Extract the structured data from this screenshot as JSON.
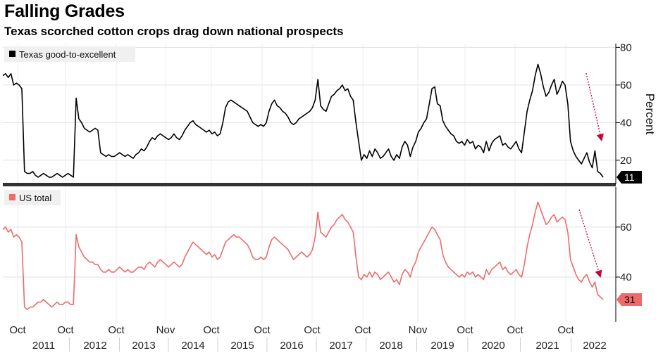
{
  "header": {
    "title": "Falling Grades",
    "subtitle": "Texas scorched cotton crops drag down national prospects"
  },
  "chart_data": [
    {
      "type": "line",
      "panel": "top",
      "series": [
        {
          "name": "Texas good-to-excellent",
          "color": "#000000",
          "values": [
            65,
            66,
            64,
            66,
            60,
            61,
            60,
            58,
            14,
            13,
            13,
            14,
            12,
            11,
            12,
            13,
            12,
            11,
            11,
            12,
            13,
            12,
            11,
            12,
            13,
            12,
            11,
            53,
            42,
            40,
            37,
            36,
            35,
            36,
            37,
            36,
            24,
            23,
            22,
            23,
            22,
            22,
            23,
            24,
            23,
            22,
            23,
            22,
            21,
            23,
            24,
            26,
            25,
            27,
            30,
            32,
            31,
            33,
            34,
            33,
            32,
            31,
            32,
            34,
            32,
            31,
            33,
            36,
            38,
            40,
            41,
            39,
            38,
            37,
            36,
            35,
            36,
            34,
            35,
            33,
            34,
            40,
            48,
            51,
            52,
            51,
            50,
            49,
            48,
            47,
            46,
            43,
            40,
            39,
            38,
            39,
            38,
            40,
            46,
            50,
            52,
            49,
            48,
            46,
            45,
            43,
            40,
            39,
            40,
            42,
            43,
            44,
            45,
            46,
            48,
            52,
            63,
            49,
            47,
            46,
            50,
            54,
            55,
            57,
            58,
            60,
            57,
            58,
            54,
            52,
            40,
            30,
            20,
            23,
            21,
            25,
            22,
            26,
            24,
            21,
            22,
            24,
            26,
            22,
            20,
            23,
            21,
            27,
            30,
            28,
            22,
            27,
            30,
            35,
            37,
            40,
            42,
            50,
            58,
            59,
            50,
            49,
            41,
            38,
            36,
            34,
            33,
            30,
            29,
            30,
            28,
            31,
            29,
            30,
            26,
            28,
            27,
            24,
            30,
            25,
            29,
            31,
            32,
            33,
            28,
            29,
            27,
            26,
            28,
            30,
            26,
            24,
            35,
            46,
            52,
            57,
            65,
            71,
            66,
            59,
            54,
            56,
            60,
            63,
            55,
            58,
            62,
            60,
            50,
            30,
            25,
            22,
            20,
            18,
            21,
            24,
            19,
            16,
            25,
            14,
            13,
            11
          ],
          "label_value": "11"
        }
      ],
      "ylim": [
        8,
        82
      ],
      "yticks": [
        20,
        40,
        60,
        80
      ],
      "ylabel": "Percent"
    },
    {
      "type": "line",
      "panel": "bottom",
      "series": [
        {
          "name": "US total",
          "color": "#ee6b6b",
          "values": [
            59,
            60,
            58,
            59,
            56,
            57,
            56,
            54,
            28,
            27,
            28,
            28,
            29,
            30,
            30,
            31,
            30,
            29,
            28,
            29,
            30,
            29,
            29,
            30,
            30,
            29,
            29,
            57,
            52,
            50,
            48,
            47,
            46,
            46,
            45,
            45,
            43,
            42,
            42,
            43,
            42,
            42,
            43,
            44,
            43,
            42,
            43,
            42,
            42,
            43,
            44,
            44,
            43,
            45,
            46,
            45,
            44,
            46,
            47,
            46,
            45,
            44,
            45,
            46,
            45,
            44,
            45,
            48,
            50,
            52,
            54,
            53,
            52,
            51,
            50,
            49,
            50,
            48,
            49,
            47,
            48,
            51,
            54,
            55,
            56,
            57,
            56,
            56,
            55,
            54,
            53,
            51,
            48,
            47,
            47,
            48,
            47,
            48,
            52,
            55,
            56,
            55,
            54,
            53,
            52,
            51,
            49,
            47,
            48,
            49,
            50,
            49,
            48,
            49,
            51,
            56,
            66,
            58,
            57,
            56,
            58,
            60,
            61,
            63,
            64,
            65,
            63,
            62,
            60,
            58,
            48,
            40,
            39,
            41,
            40,
            42,
            40,
            42,
            41,
            39,
            40,
            41,
            42,
            40,
            38,
            39,
            37,
            41,
            43,
            42,
            40,
            44,
            46,
            50,
            52,
            54,
            56,
            58,
            60,
            59,
            57,
            55,
            49,
            46,
            44,
            43,
            42,
            41,
            40,
            41,
            40,
            42,
            41,
            42,
            40,
            41,
            40,
            39,
            43,
            41,
            43,
            44,
            45,
            46,
            43,
            44,
            42,
            41,
            42,
            43,
            41,
            40,
            45,
            52,
            57,
            61,
            66,
            70,
            67,
            64,
            61,
            62,
            64,
            65,
            62,
            63,
            64,
            63,
            58,
            47,
            44,
            41,
            39,
            38,
            40,
            41,
            38,
            36,
            38,
            33,
            32,
            31
          ],
          "label_value": "31"
        }
      ],
      "ylim": [
        22,
        76
      ],
      "yticks": [
        40,
        60
      ],
      "ylabel": ""
    }
  ],
  "x_axis": {
    "month_labels": [
      "Oct",
      "Oct",
      "Oct",
      "Nov",
      "Oct",
      "Oct",
      "Oct",
      "Oct",
      "Nov",
      "Oct",
      "Oct",
      "Oct"
    ],
    "year_labels": [
      "2011",
      "2012",
      "2013",
      "2014",
      "2015",
      "2016",
      "2017",
      "2018",
      "2019",
      "2020",
      "2021",
      "2022"
    ]
  },
  "colors": {
    "texas": "#000000",
    "us": "#ee6b6b",
    "trend_arrow": "#cc0033",
    "separator": "#333333"
  }
}
